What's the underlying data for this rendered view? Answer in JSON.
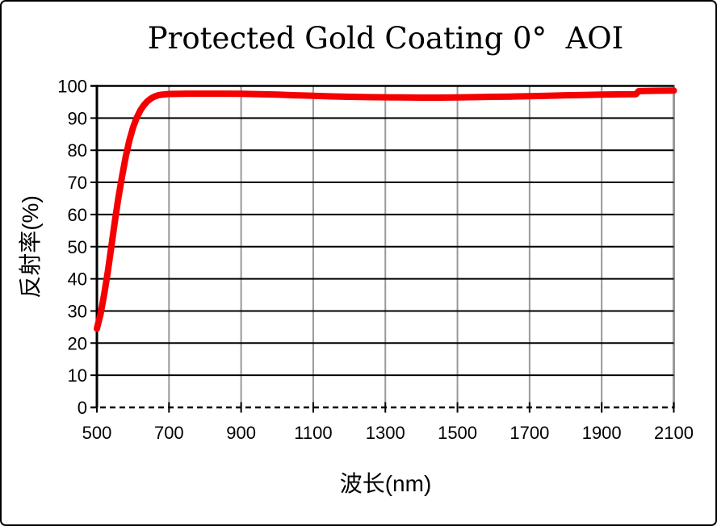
{
  "window": {
    "background": "#ffffff",
    "border_color": "#000000"
  },
  "chart_data": {
    "type": "line",
    "title": "Protected Gold Coating 0°  AOI",
    "xlabel": "波长(nm)",
    "ylabel": "反射率(%)",
    "x_range": [
      500,
      2100
    ],
    "y_range": [
      0,
      100
    ],
    "x_ticks": [
      500,
      700,
      900,
      1100,
      1300,
      1500,
      1700,
      1900,
      2100
    ],
    "y_ticks": [
      0,
      10,
      20,
      30,
      40,
      50,
      60,
      70,
      80,
      90,
      100
    ],
    "grid": {
      "horizontal_color": "#000000",
      "vertical_color": "#999999",
      "left_border_color": "#000000",
      "right_border_color": "#999999",
      "bottom_axis_style": "dashed"
    },
    "legend": null,
    "series": [
      {
        "name": "Reflectance",
        "color": "#f40000",
        "stroke_width": 8,
        "points": [
          [
            500,
            24.5
          ],
          [
            510,
            29
          ],
          [
            520,
            35
          ],
          [
            530,
            42
          ],
          [
            540,
            50
          ],
          [
            550,
            58
          ],
          [
            560,
            65.5
          ],
          [
            570,
            72
          ],
          [
            580,
            78
          ],
          [
            590,
            83
          ],
          [
            600,
            87
          ],
          [
            610,
            90
          ],
          [
            620,
            92.3
          ],
          [
            630,
            94
          ],
          [
            640,
            95.2
          ],
          [
            650,
            96.1
          ],
          [
            660,
            96.7
          ],
          [
            670,
            97.1
          ],
          [
            680,
            97.3
          ],
          [
            700,
            97.5
          ],
          [
            750,
            97.6
          ],
          [
            800,
            97.6
          ],
          [
            850,
            97.6
          ],
          [
            900,
            97.55
          ],
          [
            950,
            97.45
          ],
          [
            1000,
            97.3
          ],
          [
            1050,
            97.1
          ],
          [
            1100,
            96.95
          ],
          [
            1150,
            96.75
          ],
          [
            1200,
            96.6
          ],
          [
            1250,
            96.5
          ],
          [
            1300,
            96.45
          ],
          [
            1350,
            96.4
          ],
          [
            1400,
            96.35
          ],
          [
            1450,
            96.35
          ],
          [
            1500,
            96.4
          ],
          [
            1550,
            96.5
          ],
          [
            1600,
            96.6
          ],
          [
            1650,
            96.7
          ],
          [
            1700,
            96.8
          ],
          [
            1750,
            96.95
          ],
          [
            1800,
            97.1
          ],
          [
            1850,
            97.2
          ],
          [
            1900,
            97.3
          ],
          [
            1950,
            97.4
          ],
          [
            1995,
            97.45
          ],
          [
            2003,
            98.4
          ],
          [
            2050,
            98.5
          ],
          [
            2100,
            98.55
          ]
        ]
      }
    ]
  }
}
